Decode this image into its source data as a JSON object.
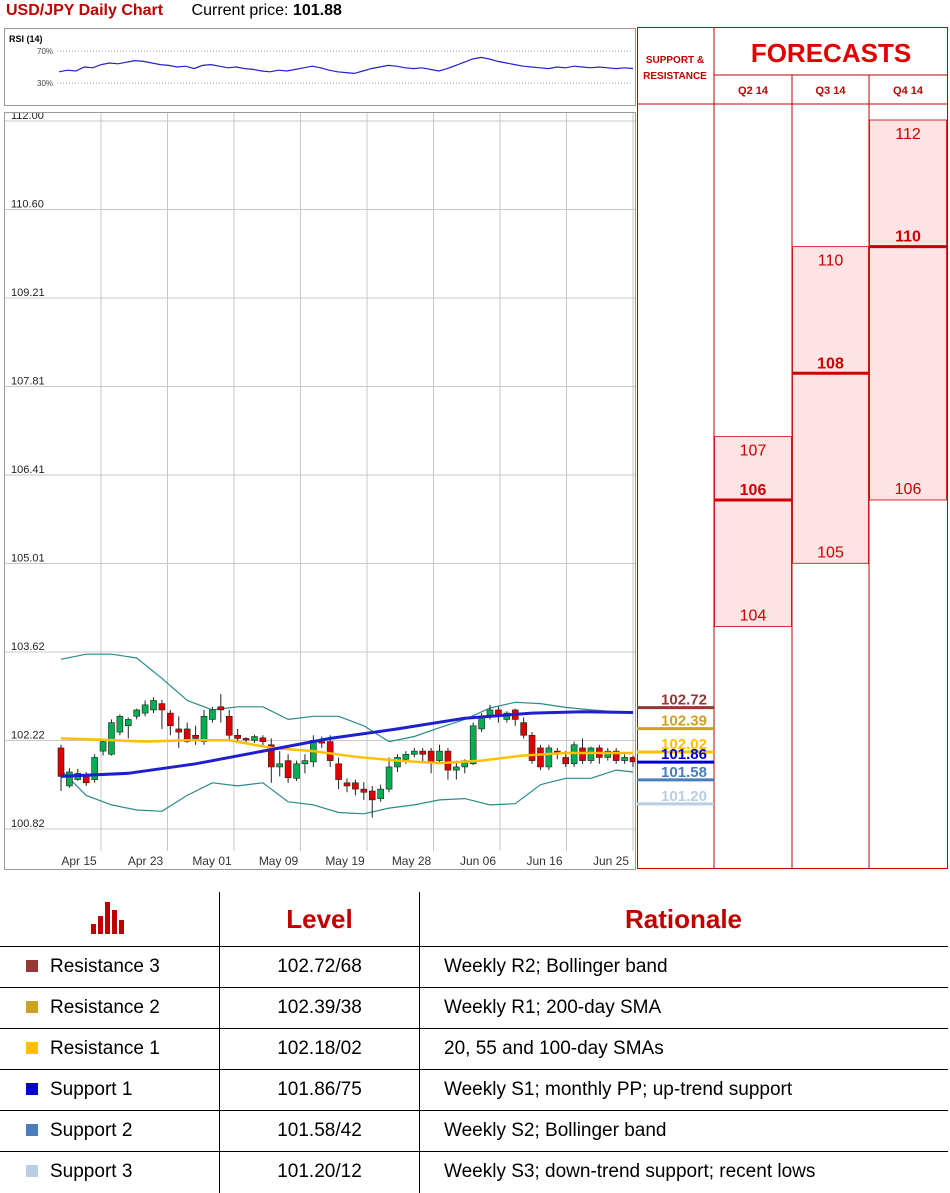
{
  "header": {
    "title": "USD/JPY Daily Chart",
    "current_label": "Current price:",
    "current_price": "101.88"
  },
  "rsi": {
    "label": "RSI (14)",
    "upper_label": "70%",
    "lower_label": "30%"
  },
  "forecasts": {
    "title": "FORECASTS",
    "sr_header_line1": "SUPPORT &",
    "sr_header_line2": "RESISTANCE",
    "quarters": [
      "Q2 14",
      "Q3 14",
      "Q4 14"
    ]
  },
  "table": {
    "col_level": "Level",
    "col_rationale": "Rationale",
    "rows": [
      {
        "name": "Resistance 3",
        "level": "102.72/68",
        "rationale": "Weekly R2; Bollinger band",
        "color": "#953735"
      },
      {
        "name": "Resistance 2",
        "level": "102.39/38",
        "rationale": "Weekly R1; 200-day SMA",
        "color": "#c9a227"
      },
      {
        "name": "Resistance 1",
        "level": "102.18/02",
        "rationale": "20, 55 and 100-day SMAs",
        "color": "#ffc000"
      },
      {
        "name": "Support 1",
        "level": "101.86/75",
        "rationale": "Weekly S1; monthly PP; up-trend support",
        "color": "#0000cc"
      },
      {
        "name": "Support 2",
        "level": "101.58/42",
        "rationale": "Weekly S2; Bollinger band",
        "color": "#4a7ebb"
      },
      {
        "name": "Support 3",
        "level": "101.20/12",
        "rationale": "Weekly S3; down-trend support; recent lows",
        "color": "#b9cde5"
      }
    ]
  },
  "chart_data": {
    "type": "candlestick",
    "ylim": [
      100.82,
      112.0
    ],
    "y_ticks": [
      "112.00",
      "110.60",
      "109.21",
      "107.81",
      "106.41",
      "105.01",
      "103.62",
      "102.22",
      "100.82"
    ],
    "x_ticks": [
      "Apr 15",
      "Apr 23",
      "May 01",
      "May 09",
      "May 19",
      "May 28",
      "Jun 06",
      "Jun 16",
      "Jun 25"
    ],
    "candles": [
      [
        102.1,
        101.65,
        101.42,
        102.15
      ],
      [
        101.5,
        101.72,
        101.47,
        101.78
      ],
      [
        101.6,
        101.7,
        101.58,
        101.77
      ],
      [
        101.65,
        101.55,
        101.5,
        101.72
      ],
      [
        101.6,
        101.95,
        101.55,
        102.0
      ],
      [
        102.05,
        102.2,
        101.98,
        102.22
      ],
      [
        102.0,
        102.5,
        101.98,
        102.55
      ],
      [
        102.35,
        102.6,
        102.3,
        102.63
      ],
      [
        102.45,
        102.55,
        102.25,
        102.58
      ],
      [
        102.6,
        102.7,
        102.55,
        102.72
      ],
      [
        102.65,
        102.78,
        102.6,
        102.85
      ],
      [
        102.7,
        102.85,
        102.65,
        102.9
      ],
      [
        102.8,
        102.7,
        102.4,
        102.86
      ],
      [
        102.65,
        102.45,
        102.3,
        102.7
      ],
      [
        102.4,
        102.35,
        102.1,
        102.6
      ],
      [
        102.4,
        102.2,
        102.18,
        102.5
      ],
      [
        102.3,
        102.25,
        102.15,
        102.45
      ],
      [
        102.2,
        102.6,
        102.15,
        102.7
      ],
      [
        102.55,
        102.7,
        102.5,
        102.75
      ],
      [
        102.75,
        102.7,
        102.5,
        102.95
      ],
      [
        102.6,
        102.3,
        102.2,
        102.7
      ],
      [
        102.3,
        102.25,
        102.2,
        102.4
      ],
      [
        102.25,
        102.24,
        102.18,
        102.27
      ],
      [
        102.22,
        102.28,
        102.18,
        102.31
      ],
      [
        102.26,
        102.2,
        102.12,
        102.3
      ],
      [
        102.15,
        101.8,
        101.55,
        102.25
      ],
      [
        101.8,
        101.85,
        101.65,
        102.05
      ],
      [
        101.9,
        101.63,
        101.55,
        102.0
      ],
      [
        101.62,
        101.85,
        101.58,
        101.9
      ],
      [
        101.85,
        101.9,
        101.7,
        102.0
      ],
      [
        101.88,
        102.22,
        101.8,
        102.3
      ],
      [
        102.2,
        102.18,
        102.1,
        102.28
      ],
      [
        102.2,
        101.9,
        101.8,
        102.3
      ],
      [
        101.85,
        101.6,
        101.45,
        101.95
      ],
      [
        101.55,
        101.5,
        101.4,
        101.62
      ],
      [
        101.55,
        101.45,
        101.35,
        101.6
      ],
      [
        101.45,
        101.4,
        101.28,
        101.56
      ],
      [
        101.42,
        101.28,
        101.0,
        101.5
      ],
      [
        101.3,
        101.45,
        101.25,
        101.52
      ],
      [
        101.45,
        101.8,
        101.4,
        101.95
      ],
      [
        101.8,
        101.95,
        101.72,
        102.0
      ],
      [
        101.92,
        102.0,
        101.85,
        102.05
      ],
      [
        102.0,
        102.05,
        101.95,
        102.1
      ],
      [
        102.05,
        102.0,
        101.88,
        102.1
      ],
      [
        102.05,
        101.88,
        101.7,
        102.1
      ],
      [
        101.9,
        102.05,
        101.85,
        102.15
      ],
      [
        102.05,
        101.75,
        101.6,
        102.1
      ],
      [
        101.75,
        101.8,
        101.6,
        101.9
      ],
      [
        101.8,
        101.9,
        101.7,
        101.92
      ],
      [
        101.85,
        102.45,
        101.83,
        102.5
      ],
      [
        102.4,
        102.6,
        102.35,
        102.65
      ],
      [
        102.6,
        102.7,
        102.55,
        102.78
      ],
      [
        102.7,
        102.6,
        102.5,
        102.75
      ],
      [
        102.55,
        102.65,
        102.5,
        102.68
      ],
      [
        102.7,
        102.55,
        102.45,
        102.72
      ],
      [
        102.5,
        102.3,
        102.25,
        102.58
      ],
      [
        102.3,
        101.9,
        101.85,
        102.35
      ],
      [
        102.1,
        101.8,
        101.75,
        102.15
      ],
      [
        101.8,
        102.1,
        101.75,
        102.15
      ],
      [
        102.05,
        102.0,
        101.92,
        102.1
      ],
      [
        101.95,
        101.85,
        101.8,
        102.05
      ],
      [
        101.85,
        102.15,
        101.8,
        102.2
      ],
      [
        102.1,
        101.9,
        101.85,
        102.25
      ],
      [
        101.9,
        102.1,
        101.85,
        102.12
      ],
      [
        102.1,
        101.95,
        101.85,
        102.15
      ],
      [
        101.95,
        102.05,
        101.9,
        102.1
      ],
      [
        102.05,
        101.9,
        101.85,
        102.1
      ],
      [
        101.9,
        101.95,
        101.85,
        102.0
      ],
      [
        101.95,
        101.88,
        101.8,
        101.98
      ]
    ],
    "sma_200": [
      [
        0,
        102.25
      ],
      [
        5,
        102.23
      ],
      [
        10,
        102.2
      ],
      [
        15,
        102.22
      ],
      [
        20,
        102.22
      ],
      [
        25,
        102.1
      ],
      [
        30,
        102.05
      ],
      [
        35,
        101.96
      ],
      [
        40,
        101.9
      ],
      [
        45,
        101.86
      ],
      [
        50,
        101.9
      ],
      [
        55,
        101.98
      ],
      [
        60,
        102.02
      ],
      [
        65,
        102.02
      ],
      [
        68,
        102.02
      ]
    ],
    "sma_55": [
      [
        0,
        101.65
      ],
      [
        8,
        101.7
      ],
      [
        16,
        101.85
      ],
      [
        24,
        102.05
      ],
      [
        32,
        102.25
      ],
      [
        40,
        102.4
      ],
      [
        48,
        102.57
      ],
      [
        56,
        102.65
      ],
      [
        62,
        102.67
      ],
      [
        68,
        102.66
      ]
    ],
    "bb_upper": [
      [
        0,
        103.5
      ],
      [
        3,
        103.58
      ],
      [
        6,
        103.58
      ],
      [
        9,
        103.52
      ],
      [
        12,
        103.2
      ],
      [
        15,
        102.85
      ],
      [
        18,
        102.7
      ],
      [
        21,
        102.75
      ],
      [
        24,
        102.75
      ],
      [
        27,
        102.55
      ],
      [
        30,
        102.6
      ],
      [
        33,
        102.6
      ],
      [
        36,
        102.45
      ],
      [
        39,
        102.2
      ],
      [
        42,
        102.28
      ],
      [
        45,
        102.42
      ],
      [
        48,
        102.55
      ],
      [
        51,
        102.73
      ],
      [
        54,
        102.82
      ],
      [
        57,
        102.8
      ],
      [
        60,
        102.74
      ],
      [
        63,
        102.7
      ],
      [
        68,
        102.65
      ]
    ],
    "bb_lower": [
      [
        0,
        101.75
      ],
      [
        3,
        101.35
      ],
      [
        6,
        101.2
      ],
      [
        9,
        101.12
      ],
      [
        12,
        101.1
      ],
      [
        15,
        101.35
      ],
      [
        18,
        101.55
      ],
      [
        21,
        101.5
      ],
      [
        24,
        101.55
      ],
      [
        27,
        101.25
      ],
      [
        30,
        101.2
      ],
      [
        33,
        101.08
      ],
      [
        36,
        101.06
      ],
      [
        39,
        101.15
      ],
      [
        42,
        101.2
      ],
      [
        45,
        101.28
      ],
      [
        48,
        101.3
      ],
      [
        51,
        101.2
      ],
      [
        54,
        101.22
      ],
      [
        57,
        101.52
      ],
      [
        60,
        101.62
      ],
      [
        63,
        101.62
      ],
      [
        66,
        101.75
      ],
      [
        68,
        101.72
      ]
    ],
    "sr_levels": [
      {
        "value": 102.72,
        "label": "102.72",
        "color": "#953735"
      },
      {
        "value": 102.39,
        "label": "102.39",
        "color": "#c9a227"
      },
      {
        "value": 102.02,
        "label": "102.02",
        "color": "#ffc000"
      },
      {
        "value": 101.86,
        "label": "101.86",
        "color": "#0000cc"
      },
      {
        "value": 101.58,
        "label": "101.58",
        "color": "#4a7ebb"
      },
      {
        "value": 101.2,
        "label": "101.20",
        "color": "#b9cde5"
      }
    ],
    "rsi_values": [
      44,
      46,
      45,
      50,
      49,
      53,
      55,
      54,
      56,
      58,
      57,
      55,
      53,
      52,
      50,
      51,
      48,
      52,
      53,
      51,
      49,
      50,
      48,
      47,
      45,
      44,
      46,
      45,
      47,
      49,
      51,
      49,
      46,
      44,
      43,
      42,
      45,
      48,
      50,
      52,
      51,
      49,
      48,
      49,
      47,
      45,
      48,
      52,
      56,
      60,
      62,
      60,
      57,
      55,
      53,
      51,
      50,
      49,
      48,
      50,
      49,
      51,
      50,
      49,
      50,
      49,
      48,
      49,
      48
    ],
    "forecast_bands": [
      {
        "quarter": "Q2 14",
        "high": "107",
        "mid": "106",
        "low": "104",
        "high_value": 107,
        "mid_value": 106,
        "low_value": 104
      },
      {
        "quarter": "Q3 14",
        "high": "110",
        "mid": "108",
        "low": "105",
        "high_value": 110,
        "mid_value": 108,
        "low_value": 105
      },
      {
        "quarter": "Q4 14",
        "high": "112",
        "mid": "110",
        "low": "106",
        "high_value": 112,
        "mid_value": 110,
        "low_value": 106
      }
    ],
    "colors": {
      "up": "#00b050",
      "down": "#e00000",
      "sma200": "#ffc000",
      "sma55": "#1f1fd0",
      "bollinger": "#2a8a8a",
      "forecast_fill": "#fde3e3",
      "forecast_line": "#cc0000",
      "forecast_text": "#cc0000"
    }
  }
}
